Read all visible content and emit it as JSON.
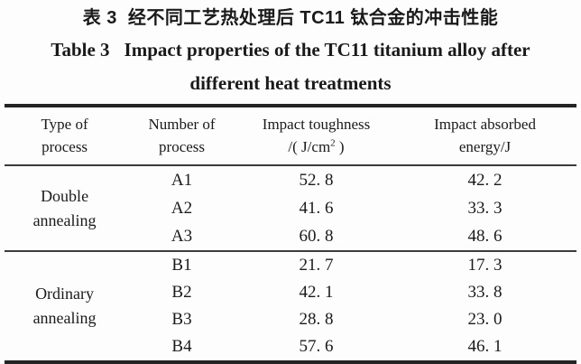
{
  "titles": {
    "cn_label": "表 3",
    "cn_text": "经不同工艺热处理后 TC11 钛合金的冲击性能",
    "en_label": "Table 3",
    "en_text": "Impact properties of the TC11 titanium alloy after",
    "en_text_line2": "different heat treatments"
  },
  "table": {
    "columns": [
      {
        "line1": "Type of",
        "line2": "process"
      },
      {
        "line1": "Number of",
        "line2": "process"
      },
      {
        "line1": "Impact toughness",
        "line2_pre": "/( J/cm",
        "line2_sup": "2",
        "line2_post": " )"
      },
      {
        "line1": "Impact absorbed",
        "line2": "energy/J"
      }
    ],
    "groups": [
      {
        "label": "Double annealing",
        "rows": [
          {
            "id": "A1",
            "toughness": "52. 8",
            "energy": "42. 2"
          },
          {
            "id": "A2",
            "toughness": "41. 6",
            "energy": "33. 3"
          },
          {
            "id": "A3",
            "toughness": "60. 8",
            "energy": "48. 6"
          }
        ]
      },
      {
        "label": "Ordinary annealing",
        "rows": [
          {
            "id": "B1",
            "toughness": "21. 7",
            "energy": "17. 3"
          },
          {
            "id": "B2",
            "toughness": "42. 1",
            "energy": "33. 8"
          },
          {
            "id": "B3",
            "toughness": "28. 8",
            "energy": "23. 0"
          },
          {
            "id": "B4",
            "toughness": "57. 6",
            "energy": "46. 1"
          }
        ]
      }
    ]
  },
  "colors": {
    "text": "#1a1a1a",
    "rule_heavy": "#242424",
    "rule_light": "#3c3c3c",
    "background": "#fdfdfd"
  }
}
